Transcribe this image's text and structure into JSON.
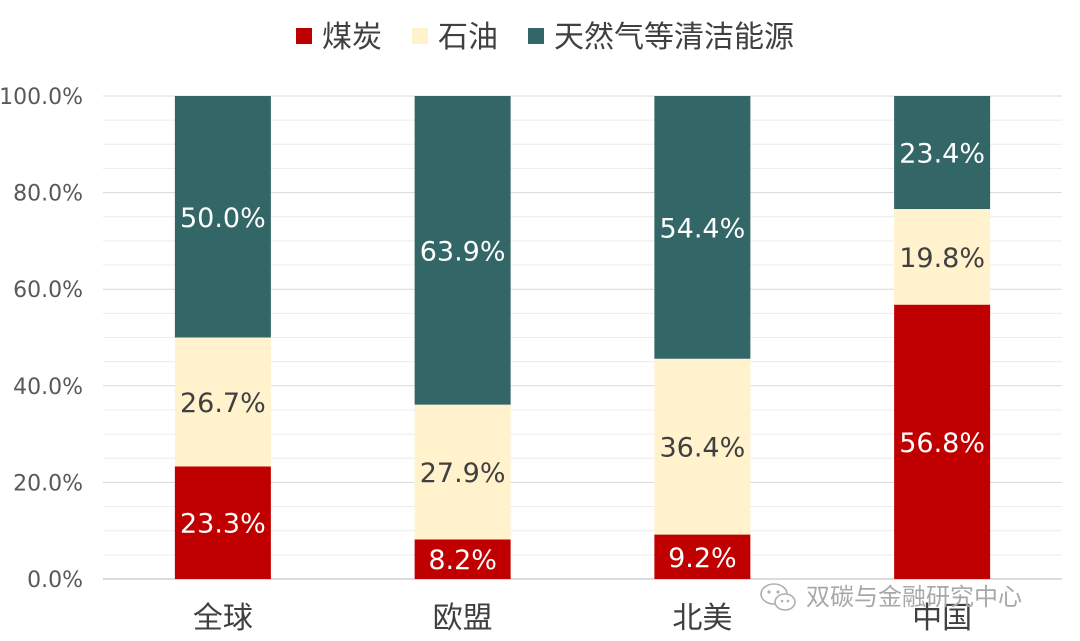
{
  "chart_data": {
    "type": "bar",
    "stacked": true,
    "categories": [
      "全球",
      "欧盟",
      "北美",
      "中国"
    ],
    "series": [
      {
        "name": "煤炭",
        "color": "#c00000",
        "label_color": "#ffffff",
        "values": [
          23.3,
          8.2,
          9.2,
          56.8
        ]
      },
      {
        "name": "石油",
        "color": "#fff2cc",
        "label_color": "#404040",
        "values": [
          26.7,
          27.9,
          36.4,
          19.8
        ]
      },
      {
        "name": "天然气等清洁能源",
        "color": "#336666",
        "label_color": "#ffffff",
        "values": [
          50.0,
          63.9,
          54.4,
          23.4
        ]
      }
    ],
    "data_labels": [
      [
        "23.3%",
        "8.2%",
        "9.2%",
        "56.8%"
      ],
      [
        "26.7%",
        "27.9%",
        "36.4%",
        "19.8%"
      ],
      [
        "50.0%",
        "63.9%",
        "54.4%",
        "23.4%"
      ]
    ],
    "yticks": [
      "0.0%",
      "20.0%",
      "40.0%",
      "60.0%",
      "80.0%",
      "100.0%"
    ],
    "ylim": [
      0,
      100
    ],
    "grid": true,
    "legend_position": "top"
  },
  "watermark": "双碳与金融研究中心"
}
